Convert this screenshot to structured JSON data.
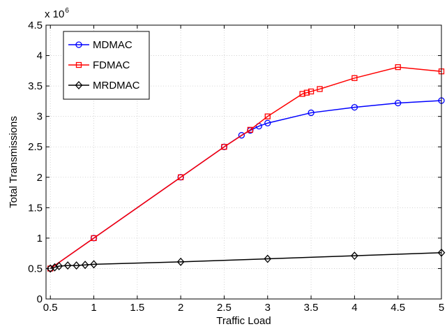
{
  "chart_data": {
    "type": "line",
    "xlabel": "Traffic Load",
    "ylabel": "Total Transmissions",
    "y_multiplier_text": "x 10",
    "y_multiplier_exponent": "6",
    "xlim": [
      0.45,
      5.0
    ],
    "ylim": [
      0,
      4.5
    ],
    "xticks": [
      0.5,
      1,
      1.5,
      2,
      2.5,
      3,
      3.5,
      4,
      4.5,
      5
    ],
    "xtick_labels": [
      "0.5",
      "1",
      "1.5",
      "2",
      "2.5",
      "3",
      "3.5",
      "4",
      "4.5",
      "5"
    ],
    "yticks": [
      0,
      0.5,
      1,
      1.5,
      2,
      2.5,
      3,
      3.5,
      4,
      4.5
    ],
    "ytick_labels": [
      "0",
      "0.5",
      "1",
      "1.5",
      "2",
      "2.5",
      "3",
      "3.5",
      "4",
      "4.5"
    ],
    "grid": true,
    "legend_position": "top-left",
    "series": [
      {
        "name": "MDMAC",
        "color": "#0000ff",
        "marker": "circle",
        "x": [
          0.5,
          1,
          2,
          2.5,
          2.7,
          2.8,
          2.9,
          3,
          3.5,
          4,
          4.5,
          5
        ],
        "y": [
          0.5,
          1.0,
          2.0,
          2.5,
          2.69,
          2.77,
          2.84,
          2.89,
          3.06,
          3.15,
          3.22,
          3.26
        ]
      },
      {
        "name": "FDMAC",
        "color": "#ff0000",
        "marker": "square",
        "x": [
          0.5,
          1,
          2,
          2.5,
          2.8,
          3,
          3.4,
          3.45,
          3.5,
          3.6,
          4,
          4.5,
          5
        ],
        "y": [
          0.5,
          1.0,
          2.0,
          2.5,
          2.78,
          3.0,
          3.37,
          3.39,
          3.41,
          3.45,
          3.63,
          3.81,
          3.74
        ]
      },
      {
        "name": "MRDMAC",
        "color": "#000000",
        "marker": "diamond",
        "x": [
          0.5,
          0.55,
          0.6,
          0.7,
          0.8,
          0.9,
          1,
          2,
          3,
          4,
          5
        ],
        "y": [
          0.5,
          0.52,
          0.54,
          0.55,
          0.55,
          0.56,
          0.57,
          0.61,
          0.66,
          0.71,
          0.76
        ]
      }
    ]
  }
}
